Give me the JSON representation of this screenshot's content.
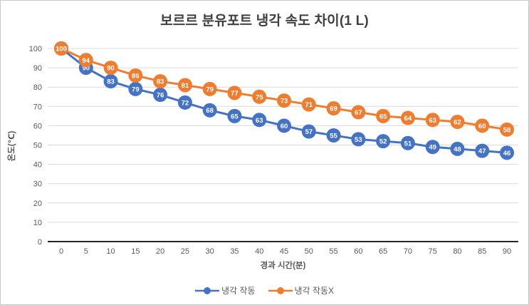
{
  "title": "보르르 분유포트 냉각 속도 차이(1 L)",
  "colors": {
    "blue": "#4472C4",
    "orange": "#ED7D31",
    "gridline": "#D9D9D9",
    "axis_text": "#595959",
    "axis_line": "#262626",
    "title_text": "#3F3F3F",
    "data_label_text": "#FFFFFF",
    "frame_border": "#C9C9C9"
  },
  "chart_data": {
    "type": "line",
    "title": "보르르 분유포트 냉각 속도 차이(1 L)",
    "xlabel": "경과 시간(분)",
    "ylabel": "온도(℃)",
    "x": [
      0,
      5,
      10,
      15,
      20,
      25,
      30,
      35,
      40,
      45,
      50,
      55,
      60,
      65,
      70,
      75,
      80,
      85,
      90
    ],
    "series": [
      {
        "name": "냉각 작동",
        "color_key": "blue",
        "values": [
          100,
          90,
          83,
          79,
          76,
          72,
          68,
          65,
          63,
          60,
          57,
          55,
          53,
          52,
          51,
          49,
          48,
          47,
          46
        ]
      },
      {
        "name": "냉각 작동X",
        "color_key": "orange",
        "values": [
          100,
          94,
          90,
          86,
          83,
          81,
          79,
          77,
          75,
          73,
          71,
          69,
          67,
          65,
          64,
          63,
          62,
          60,
          58
        ]
      }
    ],
    "ylim": [
      0,
      100
    ],
    "yticks": [
      0,
      10,
      20,
      30,
      40,
      50,
      60,
      70,
      80,
      90,
      100
    ],
    "grid": true,
    "data_labels": true,
    "legend_position": "bottom"
  }
}
